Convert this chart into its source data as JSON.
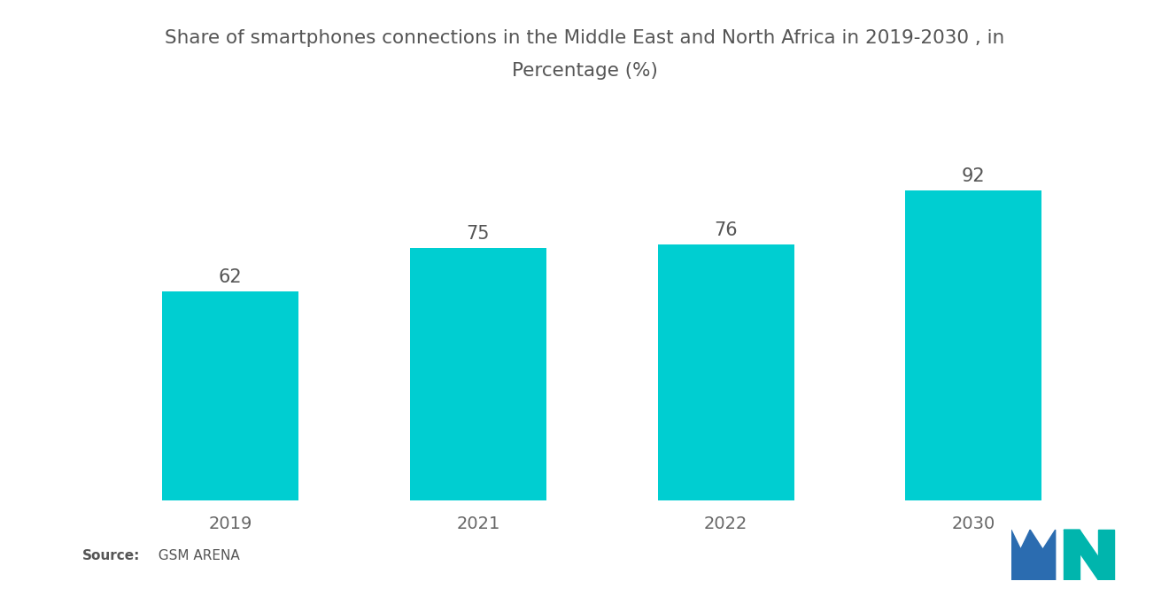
{
  "title_line1": "Share of smartphones connections in the Middle East and North Africa in 2019-2030 , in",
  "title_line2": "Percentage (%)",
  "categories": [
    "2019",
    "2021",
    "2022",
    "2030"
  ],
  "values": [
    62,
    75,
    76,
    92
  ],
  "bar_color": "#00CED1",
  "background_color": "#ffffff",
  "label_fontsize": 15,
  "title_fontsize": 15.5,
  "tick_fontsize": 14,
  "source_text": "Source:   GSM ARENA",
  "source_bold": "Source:",
  "ylim": [
    0,
    110
  ],
  "bar_width": 0.55,
  "logo_blue": "#2B6CB0",
  "logo_teal": "#00B5AD"
}
